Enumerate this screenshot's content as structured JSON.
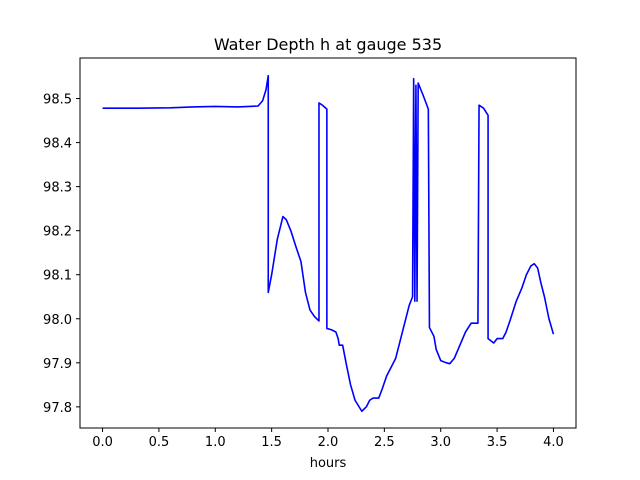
{
  "chart_data": {
    "type": "line",
    "title": "Water Depth h at gauge 535",
    "xlabel": "hours",
    "ylabel": "",
    "xlim": [
      -0.2,
      4.2
    ],
    "ylim": [
      97.752,
      98.592
    ],
    "xticks": [
      0.0,
      0.5,
      1.0,
      1.5,
      2.0,
      2.5,
      3.0,
      3.5,
      4.0
    ],
    "xtick_labels": [
      "0.0",
      "0.5",
      "1.0",
      "1.5",
      "2.0",
      "2.5",
      "3.0",
      "3.5",
      "4.0"
    ],
    "yticks": [
      97.8,
      97.9,
      98.0,
      98.1,
      98.2,
      98.3,
      98.4,
      98.5
    ],
    "ytick_labels": [
      "97.8",
      "97.9",
      "98.0",
      "98.1",
      "98.2",
      "98.3",
      "98.4",
      "98.5"
    ],
    "grid": false,
    "series": [
      {
        "color": "#0000ff",
        "points": [
          [
            0.0,
            98.478
          ],
          [
            0.3,
            98.478
          ],
          [
            0.6,
            98.479
          ],
          [
            0.8,
            98.481
          ],
          [
            1.0,
            98.482
          ],
          [
            1.2,
            98.481
          ],
          [
            1.38,
            98.483
          ],
          [
            1.42,
            98.495
          ],
          [
            1.45,
            98.52
          ],
          [
            1.47,
            98.552
          ],
          [
            1.47,
            98.06
          ],
          [
            1.5,
            98.1
          ],
          [
            1.55,
            98.18
          ],
          [
            1.6,
            98.232
          ],
          [
            1.63,
            98.225
          ],
          [
            1.67,
            98.2
          ],
          [
            1.72,
            98.16
          ],
          [
            1.76,
            98.13
          ],
          [
            1.8,
            98.06
          ],
          [
            1.84,
            98.02
          ],
          [
            1.88,
            98.005
          ],
          [
            1.92,
            97.995
          ],
          [
            1.92,
            98.49
          ],
          [
            1.95,
            98.485
          ],
          [
            1.99,
            98.476
          ],
          [
            1.99,
            97.978
          ],
          [
            2.03,
            97.975
          ],
          [
            2.07,
            97.97
          ],
          [
            2.09,
            97.955
          ],
          [
            2.1,
            97.94
          ],
          [
            2.13,
            97.94
          ],
          [
            2.16,
            97.9
          ],
          [
            2.2,
            97.85
          ],
          [
            2.24,
            97.815
          ],
          [
            2.3,
            97.79
          ],
          [
            2.34,
            97.8
          ],
          [
            2.37,
            97.815
          ],
          [
            2.4,
            97.82
          ],
          [
            2.45,
            97.82
          ],
          [
            2.48,
            97.84
          ],
          [
            2.52,
            97.87
          ],
          [
            2.56,
            97.89
          ],
          [
            2.6,
            97.91
          ],
          [
            2.64,
            97.95
          ],
          [
            2.68,
            97.99
          ],
          [
            2.72,
            98.03
          ],
          [
            2.75,
            98.05
          ],
          [
            2.76,
            98.545
          ],
          [
            2.77,
            98.04
          ],
          [
            2.78,
            98.53
          ],
          [
            2.79,
            98.04
          ],
          [
            2.8,
            98.535
          ],
          [
            2.84,
            98.51
          ],
          [
            2.89,
            98.476
          ],
          [
            2.9,
            97.98
          ],
          [
            2.94,
            97.96
          ],
          [
            2.96,
            97.93
          ],
          [
            3.0,
            97.905
          ],
          [
            3.05,
            97.9
          ],
          [
            3.08,
            97.898
          ],
          [
            3.12,
            97.91
          ],
          [
            3.17,
            97.94
          ],
          [
            3.22,
            97.97
          ],
          [
            3.27,
            97.99
          ],
          [
            3.33,
            97.99
          ],
          [
            3.34,
            98.485
          ],
          [
            3.38,
            98.478
          ],
          [
            3.42,
            98.462
          ],
          [
            3.42,
            97.955
          ],
          [
            3.47,
            97.945
          ],
          [
            3.5,
            97.955
          ],
          [
            3.55,
            97.955
          ],
          [
            3.58,
            97.97
          ],
          [
            3.62,
            98.0
          ],
          [
            3.67,
            98.04
          ],
          [
            3.72,
            98.07
          ],
          [
            3.76,
            98.1
          ],
          [
            3.8,
            98.12
          ],
          [
            3.83,
            98.125
          ],
          [
            3.86,
            98.115
          ],
          [
            3.89,
            98.08
          ],
          [
            3.92,
            98.05
          ],
          [
            3.96,
            98.0
          ],
          [
            4.0,
            97.965
          ]
        ]
      }
    ]
  }
}
